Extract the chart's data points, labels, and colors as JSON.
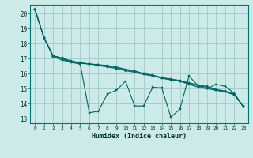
{
  "xlabel": "Humidex (Indice chaleur)",
  "bg_color": "#cceae7",
  "grid_color": "#aacccc",
  "line_color": "#006666",
  "xlim": [
    -0.5,
    23.5
  ],
  "ylim": [
    12.7,
    20.6
  ],
  "yticks": [
    13,
    14,
    15,
    16,
    17,
    18,
    19,
    20
  ],
  "xticks": [
    0,
    1,
    2,
    3,
    4,
    5,
    6,
    7,
    8,
    9,
    10,
    11,
    12,
    13,
    14,
    15,
    16,
    17,
    18,
    19,
    20,
    21,
    22,
    23
  ],
  "line1_x": [
    0,
    1,
    2,
    3,
    4,
    5,
    6,
    7,
    8,
    9,
    10,
    11,
    12,
    13,
    14,
    15,
    16,
    17,
    18,
    19,
    20,
    21,
    22,
    23
  ],
  "line1_y": [
    20.3,
    18.4,
    17.2,
    17.0,
    16.75,
    16.65,
    13.4,
    13.5,
    14.65,
    14.9,
    15.5,
    13.85,
    13.85,
    15.1,
    15.05,
    13.1,
    13.65,
    15.85,
    15.2,
    15.0,
    15.3,
    15.15,
    14.7,
    13.8
  ],
  "line2_x": [
    0,
    1,
    2,
    3,
    4,
    5,
    6,
    7,
    8,
    9,
    10,
    11,
    12,
    13,
    14,
    15,
    16,
    17,
    18,
    19,
    20,
    21,
    22,
    23
  ],
  "line2_y": [
    20.3,
    18.4,
    17.2,
    17.05,
    16.85,
    16.75,
    16.65,
    16.55,
    16.45,
    16.35,
    16.2,
    16.1,
    15.95,
    15.85,
    15.7,
    15.6,
    15.5,
    15.35,
    15.2,
    15.1,
    14.9,
    14.8,
    14.6,
    13.8
  ],
  "line3_x": [
    0,
    1,
    2,
    3,
    4,
    5,
    6,
    7,
    8,
    9,
    10,
    11,
    12,
    13,
    14,
    15,
    16,
    17,
    18,
    19,
    20,
    21,
    22,
    23
  ],
  "line3_y": [
    20.3,
    18.4,
    17.2,
    17.0,
    16.8,
    16.7,
    16.65,
    16.6,
    16.5,
    16.4,
    16.25,
    16.15,
    16.0,
    15.9,
    15.75,
    15.65,
    15.55,
    15.4,
    15.25,
    15.15,
    14.95,
    14.85,
    14.65,
    13.8
  ],
  "line4_x": [
    0,
    1,
    2,
    3,
    4,
    5,
    6,
    7,
    8,
    9,
    10,
    11,
    12,
    13,
    14,
    15,
    16,
    17,
    18,
    19,
    20,
    21,
    22,
    23
  ],
  "line4_y": [
    20.3,
    18.4,
    17.15,
    16.9,
    16.8,
    16.7,
    16.65,
    16.6,
    16.55,
    16.45,
    16.3,
    16.2,
    16.0,
    15.9,
    15.7,
    15.6,
    15.5,
    15.3,
    15.1,
    15.0,
    14.9,
    14.8,
    14.6,
    13.8
  ]
}
